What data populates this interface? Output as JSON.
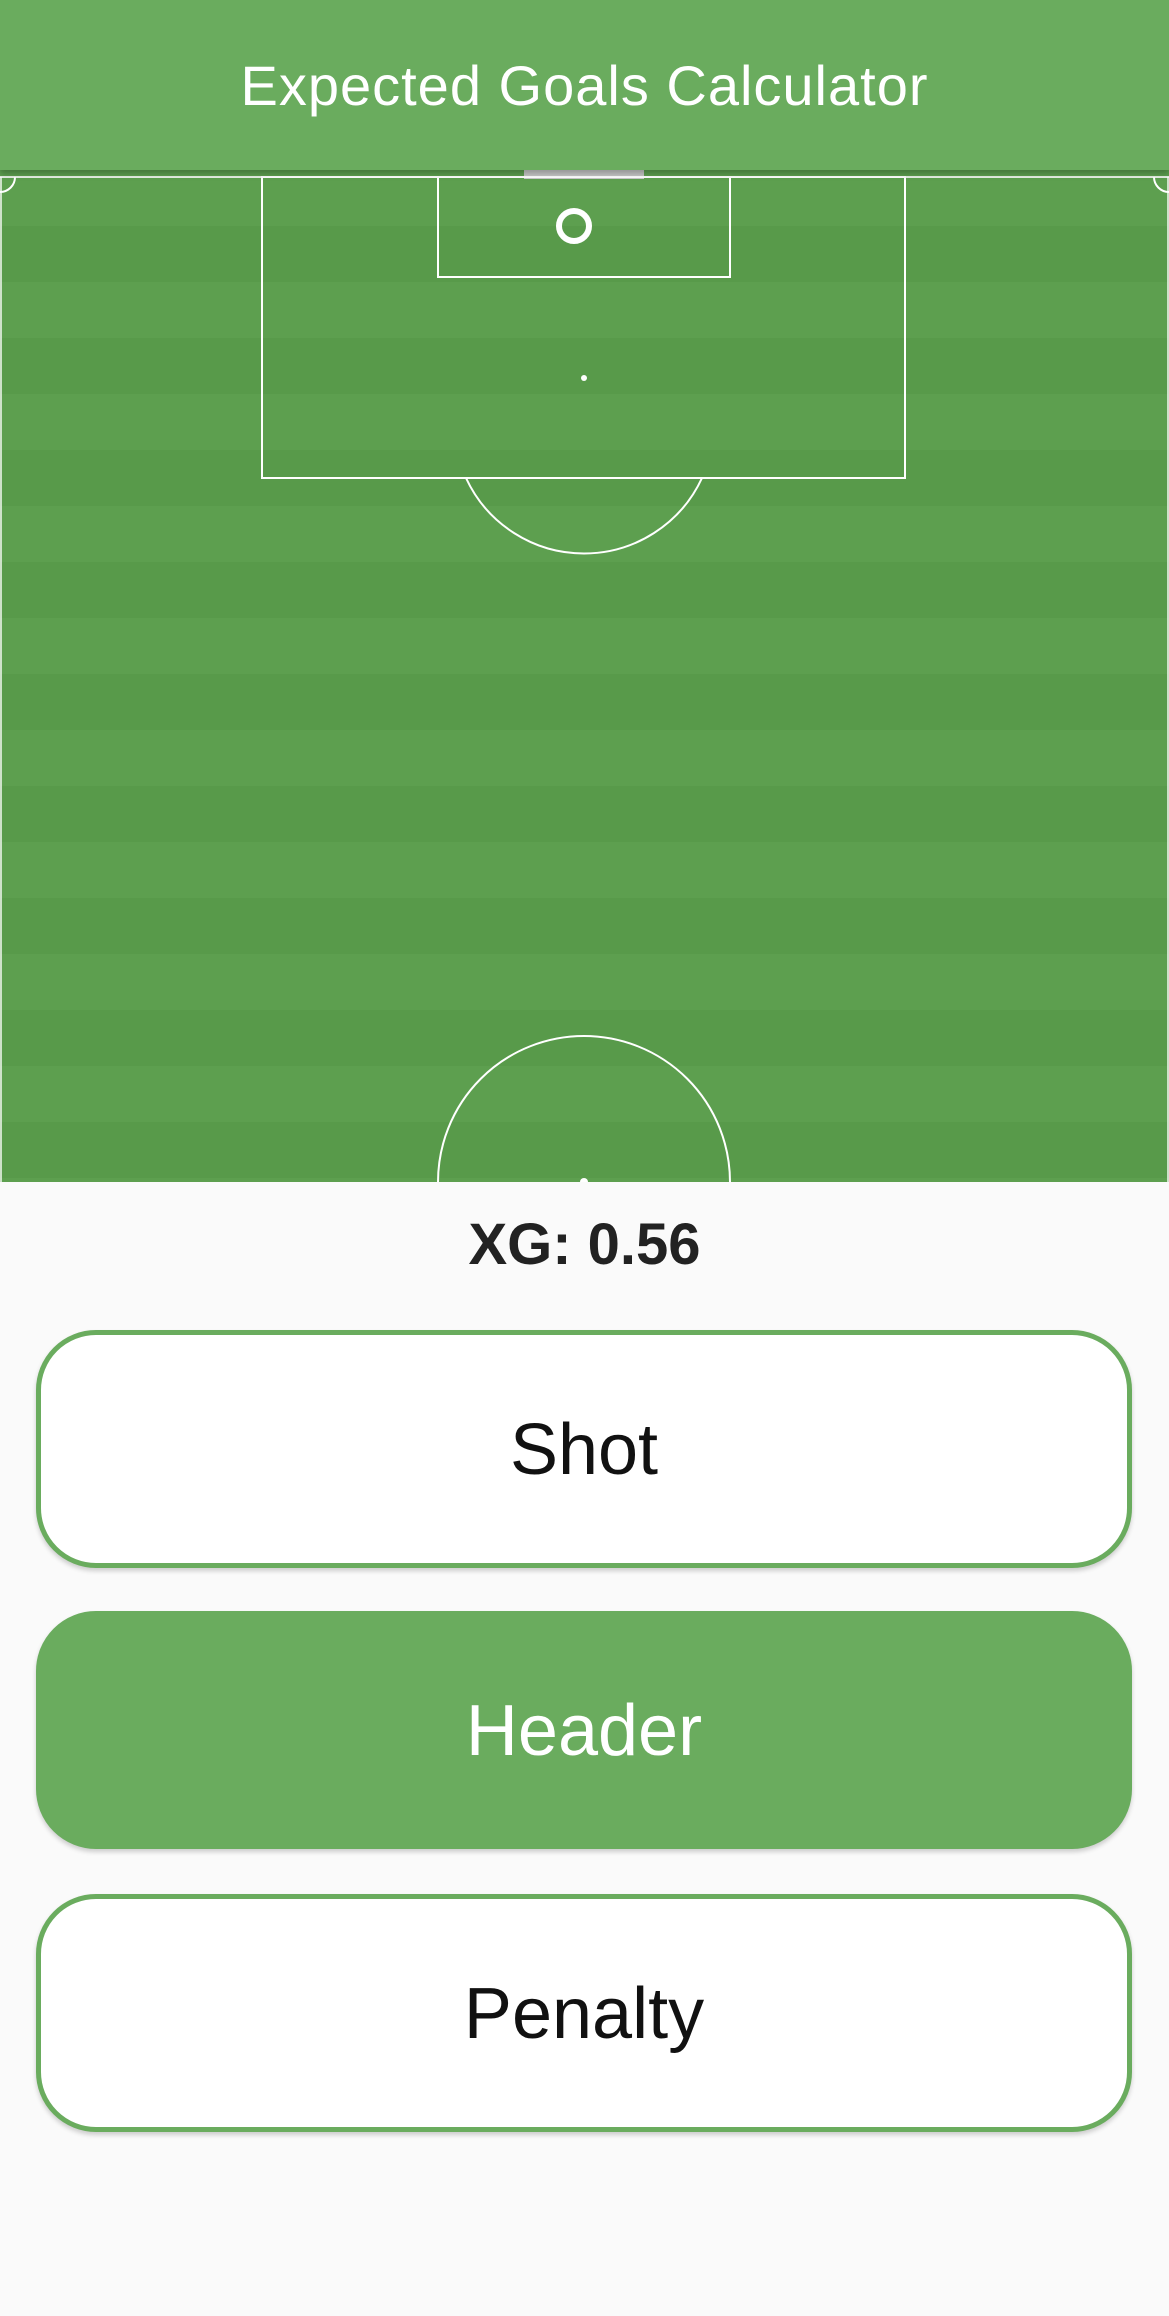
{
  "app_bar": {
    "title": "Expected Goals Calculator"
  },
  "result": {
    "xg_text": "XG: 0.56"
  },
  "shot_types": {
    "shot_label": "Shot",
    "header_label": "Header",
    "penalty_label": "Penalty",
    "selected": "Header"
  },
  "colors": {
    "primary": "#6aac5e",
    "pitch_light": "#5d9f4f",
    "pitch_dark": "#589a4a",
    "background": "#fafafa"
  },
  "icons": {
    "ball_marker": "circle-outline"
  }
}
